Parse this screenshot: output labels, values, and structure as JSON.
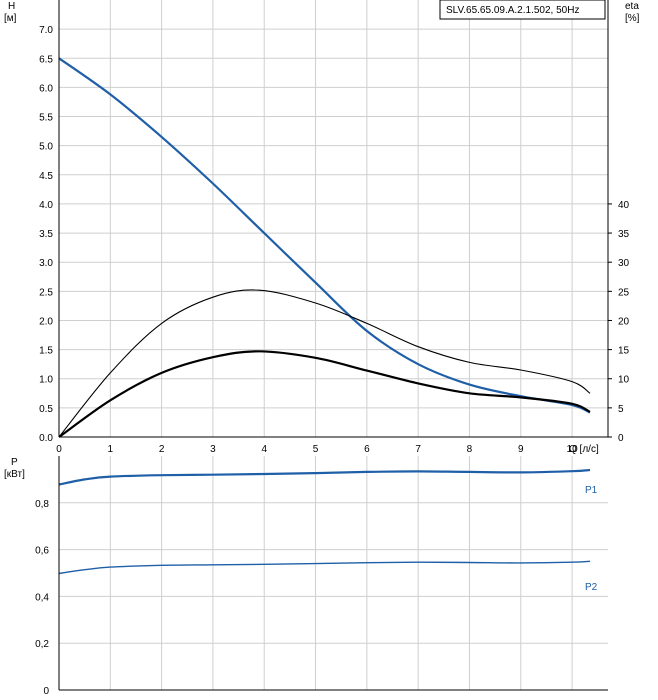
{
  "chart_data": [
    {
      "type": "line",
      "title": "SLV.65.65.09.A.2.1.502, 50Hz",
      "xlabel": "Q [л/с]",
      "ylabel": "H",
      "ylabel_unit": "[м]",
      "y2label": "eta",
      "y2label_unit": "[%]",
      "xlim": [
        0,
        10.7
      ],
      "ylim": [
        0,
        7.5
      ],
      "y2lim": [
        0,
        75
      ],
      "x_ticks": [
        "0",
        "1",
        "2",
        "3",
        "4",
        "5",
        "6",
        "7",
        "8",
        "9",
        "10"
      ],
      "y_ticks": [
        "0.0",
        "0.5",
        "1.0",
        "1.5",
        "2.0",
        "2.5",
        "3.0",
        "3.5",
        "4.0",
        "4.5",
        "5.0",
        "5.5",
        "6.0",
        "6.5",
        "7.0"
      ],
      "y2_ticks": [
        "0",
        "5",
        "10",
        "15",
        "20",
        "25",
        "30",
        "35",
        "40"
      ],
      "grid": true,
      "colors": {
        "head": "#1f5fa8",
        "efficiency": "#000000"
      },
      "series": [
        {
          "axis": "left",
          "x": [
            0,
            1,
            2,
            3,
            4,
            5,
            6,
            7,
            8,
            9,
            10,
            10.35
          ],
          "values": [
            6.5,
            5.88,
            5.15,
            4.35,
            3.5,
            2.65,
            1.82,
            1.25,
            0.9,
            0.7,
            0.55,
            0.42
          ]
        },
        {
          "axis": "right",
          "x": [
            0,
            1,
            2,
            3,
            3.9,
            5,
            6,
            7,
            8,
            9,
            10,
            10.35
          ],
          "values": [
            0,
            11,
            19.5,
            24,
            25.2,
            23,
            19.5,
            15.5,
            12.8,
            11.5,
            9.5,
            7.5
          ]
        },
        {
          "axis": "right",
          "x": [
            0,
            1,
            2,
            3,
            3.9,
            5,
            6,
            7,
            8,
            9,
            10,
            10.35
          ],
          "values": [
            0,
            6.3,
            11,
            13.7,
            14.7,
            13.6,
            11.4,
            9.2,
            7.5,
            6.8,
            5.7,
            4.3
          ]
        }
      ]
    },
    {
      "type": "line",
      "xlabel": "",
      "ylabel": "P",
      "ylabel_unit": "[кВт]",
      "xlim": [
        0,
        10.7
      ],
      "ylim": [
        0,
        1.0
      ],
      "y_ticks": [
        "0",
        "0,2",
        "0,4",
        "0,6",
        "0,8"
      ],
      "grid": true,
      "colors": {
        "power": "#1f5fa8"
      },
      "series": [
        {
          "name": "P1",
          "x": [
            0,
            0.5,
            1,
            2,
            3,
            4,
            5,
            6,
            7,
            8,
            9,
            10,
            10.35
          ],
          "values": [
            0.878,
            0.9,
            0.912,
            0.918,
            0.92,
            0.923,
            0.927,
            0.932,
            0.934,
            0.932,
            0.93,
            0.935,
            0.94
          ]
        },
        {
          "name": "P2",
          "x": [
            0,
            0.5,
            1,
            2,
            3,
            4,
            5,
            6,
            7,
            8,
            9,
            10,
            10.35
          ],
          "values": [
            0.498,
            0.514,
            0.525,
            0.533,
            0.535,
            0.537,
            0.54,
            0.544,
            0.546,
            0.545,
            0.543,
            0.546,
            0.55
          ]
        }
      ]
    }
  ]
}
